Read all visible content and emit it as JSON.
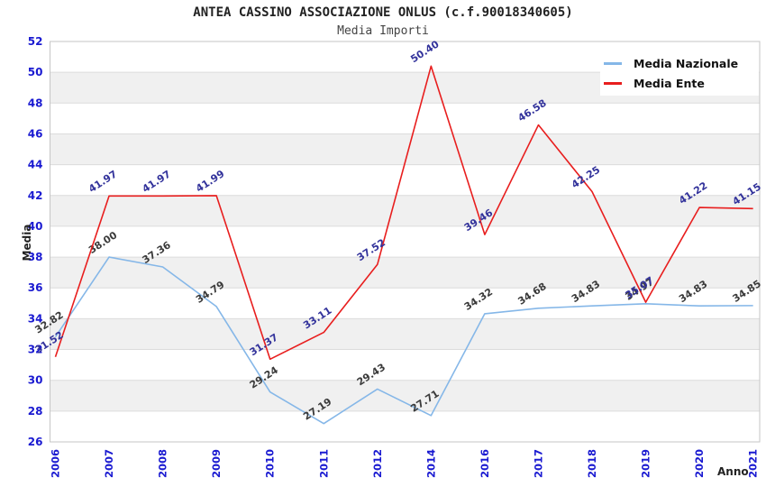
{
  "chart_data": {
    "type": "line",
    "title": "ANTEA CASSINO ASSOCIAZIONE ONLUS (c.f.90018340605)",
    "subtitle": "Media Importi",
    "xlabel": "Anno",
    "ylabel": "Media",
    "ylim": [
      26,
      52
    ],
    "y_ticks": [
      26,
      28,
      30,
      32,
      34,
      36,
      38,
      40,
      42,
      44,
      46,
      48,
      50,
      52
    ],
    "categories": [
      "2006",
      "2007",
      "2008",
      "2009",
      "2010",
      "2011",
      "2012",
      "2014",
      "2016",
      "2017",
      "2018",
      "2019",
      "2020",
      "2021"
    ],
    "grid": "horizontal gridlines with alternating gray bands",
    "legend_position": "top-right inside plot",
    "colors": {
      "tick_label": "#1a1ad1",
      "plot_border": "#c6c6c6",
      "gridline": "#dcdcdc",
      "band_gray": "#f0f0f0",
      "band_white": "#ffffff"
    },
    "series": [
      {
        "name": "Media Nazionale",
        "color": "#85b7e8",
        "label_color": "#3a3a3a",
        "values": [
          32.82,
          38.0,
          37.36,
          34.79,
          29.24,
          27.19,
          29.43,
          27.71,
          34.32,
          34.68,
          34.83,
          34.97,
          34.83,
          34.85
        ]
      },
      {
        "name": "Media Ente",
        "color": "#e81e1e",
        "label_color": "#32329b",
        "values": [
          31.52,
          41.97,
          41.97,
          41.99,
          31.37,
          33.11,
          37.52,
          50.4,
          39.46,
          46.58,
          42.25,
          35.07,
          41.22,
          41.15
        ]
      }
    ]
  }
}
